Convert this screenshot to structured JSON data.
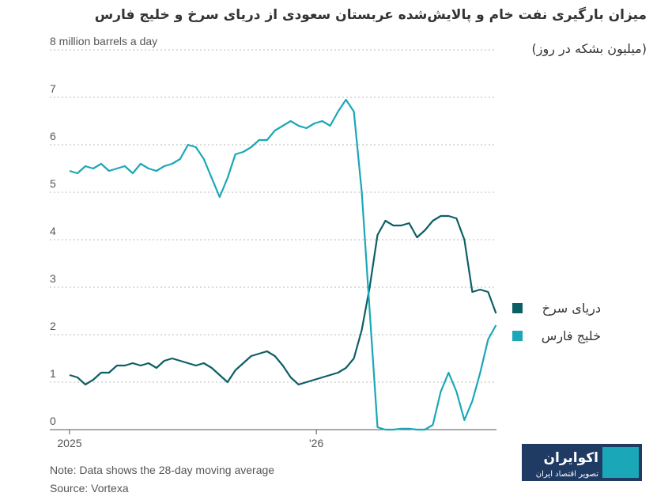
{
  "chart_data": {
    "type": "line",
    "title": "میزان بارگیری نفت خام و پالایش‌شده عربستان سعودی از دریای سرخ و خلیج فارس",
    "subtitle": "(میلیون بشکه در روز)",
    "note": "Note: Data shows the 28-day moving average",
    "source": "Source: Vortexa",
    "logo": {
      "name": "اکوایران",
      "tagline": "تصویر اقتصاد ایران"
    },
    "x": [
      2025,
      2025.032,
      2025.064,
      2025.096,
      2025.128,
      2025.16,
      2025.192,
      2025.224,
      2025.256,
      2025.288,
      2025.32,
      2025.352,
      2025.384,
      2025.416,
      2025.448,
      2025.48,
      2025.512,
      2025.544,
      2025.576,
      2025.608,
      2025.64,
      2025.672,
      2025.704,
      2025.736,
      2025.768,
      2025.8,
      2025.832,
      2025.864,
      2025.896,
      2025.928,
      2025.96,
      2025.992,
      2026.024,
      2026.056,
      2026.088,
      2026.12,
      2026.152,
      2026.184,
      2026.216,
      2026.248,
      2026.28,
      2026.312,
      2026.344,
      2026.376,
      2026.408,
      2026.44,
      2026.472,
      2026.504,
      2026.536,
      2026.568,
      2026.6,
      2026.632,
      2026.664,
      2026.696,
      2026.728
    ],
    "series": [
      {
        "name": "دریای سرخ",
        "color": "#0d5f66",
        "values": [
          1.15,
          1.1,
          0.95,
          1.05,
          1.2,
          1.2,
          1.35,
          1.35,
          1.4,
          1.35,
          1.4,
          1.3,
          1.45,
          1.5,
          1.45,
          1.4,
          1.35,
          1.4,
          1.3,
          1.15,
          1.0,
          1.25,
          1.4,
          1.55,
          1.6,
          1.65,
          1.55,
          1.35,
          1.1,
          0.95,
          1.0,
          1.05,
          1.1,
          1.15,
          1.2,
          1.3,
          1.5,
          2.1,
          3.0,
          4.1,
          4.4,
          4.3,
          4.3,
          4.35,
          4.05,
          4.2,
          4.4,
          4.5,
          4.5,
          4.45,
          4.0,
          2.9,
          2.95,
          2.9,
          2.45
        ]
      },
      {
        "name": "خلیج فارس",
        "color": "#1aa7b8",
        "values": [
          5.45,
          5.4,
          5.55,
          5.5,
          5.6,
          5.45,
          5.5,
          5.55,
          5.4,
          5.6,
          5.5,
          5.45,
          5.55,
          5.6,
          5.7,
          6.0,
          5.95,
          5.7,
          5.3,
          4.9,
          5.3,
          5.8,
          5.85,
          5.95,
          6.1,
          6.1,
          6.3,
          6.4,
          6.5,
          6.4,
          6.35,
          6.45,
          6.5,
          6.4,
          6.7,
          6.95,
          6.7,
          5.0,
          2.5,
          0.05,
          0,
          0,
          0.02,
          0.02,
          0,
          0,
          0.1,
          0.8,
          1.2,
          0.8,
          0.2,
          0.6,
          1.2,
          1.9,
          2.2
        ]
      }
    ],
    "xlim": [
      2024.92,
      2026.73
    ],
    "xticks": [
      2025,
      {
        "value": 2026,
        "label": "'26"
      }
    ],
    "ylim": [
      0,
      8
    ],
    "yticks": [
      0,
      1,
      2,
      3,
      4,
      5,
      6,
      7,
      {
        "value": 8,
        "label": "8 million barrels a day"
      }
    ],
    "grid": true
  }
}
